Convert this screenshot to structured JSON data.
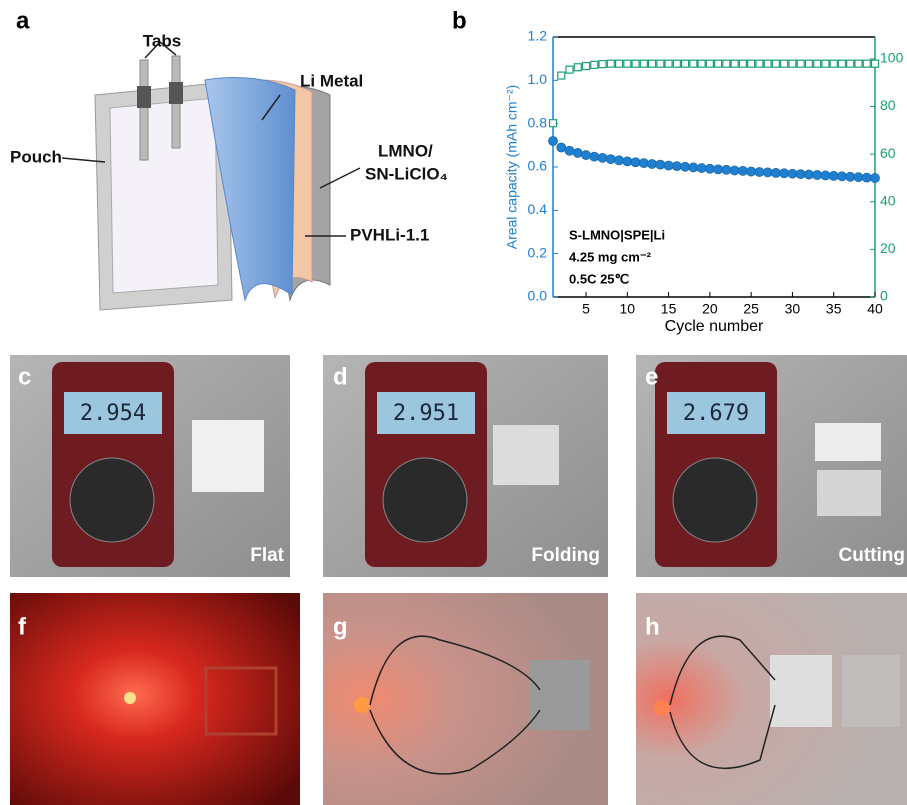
{
  "panels": {
    "a": "a",
    "b": "b",
    "c": "c",
    "d": "d",
    "e": "e",
    "f": "f",
    "g": "g",
    "h": "h"
  },
  "schematic": {
    "tabs": "Tabs",
    "li_metal": "Li Metal",
    "pouch": "Pouch",
    "cathode_line1": "LMNO/",
    "cathode_line2": "SN-LiClO₄",
    "electrolyte": "PVHLi-1.1"
  },
  "photos": [
    {
      "reading": "2.954",
      "label": "Flat"
    },
    {
      "reading": "2.951",
      "label": "Folding"
    },
    {
      "reading": "2.679",
      "label": "Cutting"
    }
  ],
  "chart_data": {
    "type": "scatter",
    "xlabel": "Cycle number",
    "ylabel": "Areal capacity (mAh cm⁻²)",
    "annotations": [
      "S-LMNO|SPE|Li",
      "4.25 mg cm⁻²",
      "0.5C 25℃"
    ],
    "x": [
      1,
      2,
      3,
      4,
      5,
      6,
      7,
      8,
      9,
      10,
      11,
      12,
      13,
      14,
      15,
      16,
      17,
      18,
      19,
      20,
      21,
      22,
      23,
      24,
      25,
      26,
      27,
      28,
      29,
      30,
      31,
      32,
      33,
      34,
      35,
      36,
      37,
      38,
      39,
      40
    ],
    "xlim": [
      1,
      40
    ],
    "xticks": [
      5,
      10,
      15,
      20,
      25,
      30,
      35,
      40
    ],
    "ylim": [
      0,
      1.2
    ],
    "yticks": [
      {
        "value": 0,
        "label": "0.0"
      },
      0.2,
      0.4,
      0.6,
      0.8,
      {
        "value": 1,
        "label": "1.0"
      },
      1.2
    ],
    "y2lim": [
      0,
      109.2
    ],
    "y2ticks": [
      0,
      20,
      40,
      60,
      80,
      100
    ],
    "series": [
      {
        "color": "#1f7fd0",
        "marker": "circle",
        "values": [
          0.72,
          0.69,
          0.675,
          0.665,
          0.655,
          0.648,
          0.642,
          0.636,
          0.631,
          0.626,
          0.622,
          0.618,
          0.614,
          0.611,
          0.607,
          0.604,
          0.601,
          0.598,
          0.595,
          0.592,
          0.589,
          0.587,
          0.584,
          0.582,
          0.579,
          0.577,
          0.575,
          0.573,
          0.571,
          0.569,
          0.567,
          0.565,
          0.563,
          0.561,
          0.559,
          0.557,
          0.555,
          0.553,
          0.551,
          0.549
        ]
      },
      {
        "color": "#1aa070",
        "marker": "square",
        "axis": "y2",
        "values": [
          73,
          93,
          95.5,
          96.5,
          97,
          97.5,
          97.8,
          98,
          98,
          98,
          98,
          98,
          98,
          98,
          98,
          98,
          98,
          98,
          98,
          98,
          98,
          98,
          98,
          98,
          98,
          98,
          98,
          98,
          98,
          98,
          98,
          98,
          98,
          98,
          98,
          98,
          98,
          98,
          98,
          98
        ]
      }
    ]
  }
}
